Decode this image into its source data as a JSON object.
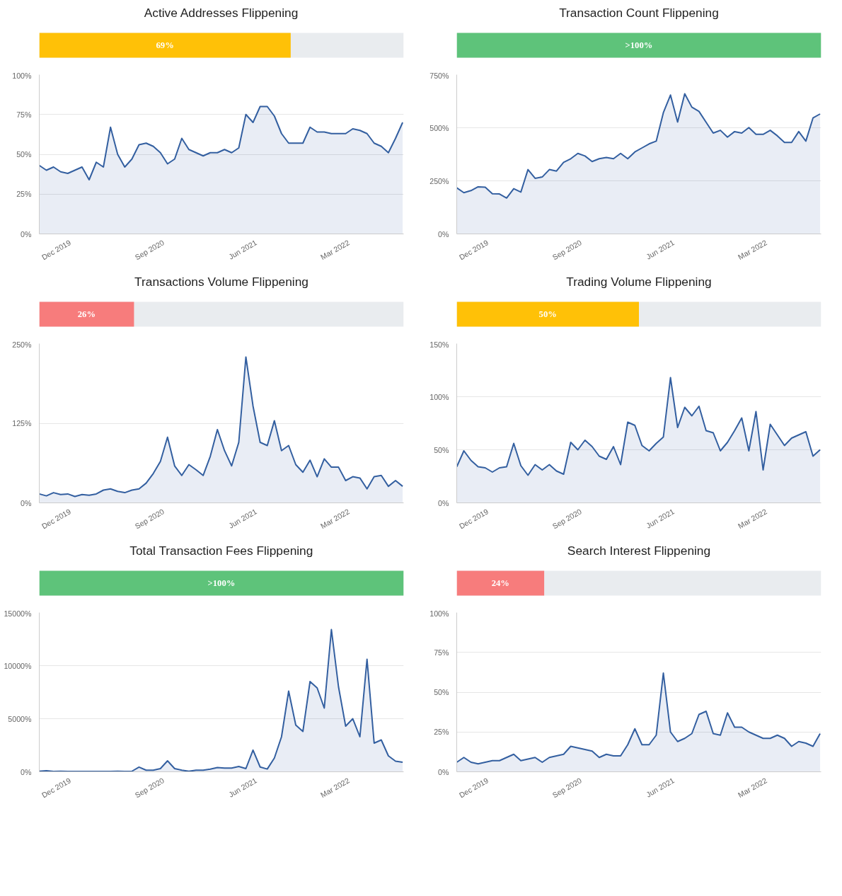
{
  "chart_data": [
    {
      "type": "other",
      "title": "Active Addresses Flippening",
      "values": [
        69
      ],
      "value_labels": [
        "69%"
      ],
      "colors": [
        "#ffc107"
      ]
    },
    {
      "type": "area",
      "xlim": [
        "2019-09-01",
        "2022-08-10"
      ],
      "ylim": [
        0,
        100
      ],
      "grid": "y",
      "xticks": [
        {
          "value": "2019-12-01",
          "label": "Dec 2019"
        },
        {
          "value": "2020-09-01",
          "label": "Sep 2020"
        },
        {
          "value": "2021-06-01",
          "label": "Jun 2021"
        },
        {
          "value": "2022-03-01",
          "label": "Mar 2022"
        }
      ],
      "yticks": [
        {
          "value": 0,
          "label": "0%"
        },
        {
          "value": 25,
          "label": "25%"
        },
        {
          "value": 50,
          "label": "50%"
        },
        {
          "value": 75,
          "label": "75%"
        },
        {
          "value": 100,
          "label": "100%"
        }
      ],
      "x": [
        "2019-09-01",
        "2019-09-22",
        "2019-10-13",
        "2019-11-03",
        "2019-11-24",
        "2019-12-15",
        "2020-01-05",
        "2020-01-26",
        "2020-02-16",
        "2020-03-08",
        "2020-03-29",
        "2020-04-19",
        "2020-05-10",
        "2020-05-31",
        "2020-06-21",
        "2020-07-12",
        "2020-08-02",
        "2020-08-23",
        "2020-09-13",
        "2020-10-04",
        "2020-10-25",
        "2020-11-15",
        "2020-12-06",
        "2020-12-27",
        "2021-01-17",
        "2021-02-07",
        "2021-02-28",
        "2021-03-21",
        "2021-04-11",
        "2021-05-02",
        "2021-05-23",
        "2021-06-13",
        "2021-07-04",
        "2021-07-25",
        "2021-08-15",
        "2021-09-05",
        "2021-09-26",
        "2021-10-17",
        "2021-11-07",
        "2021-11-28",
        "2021-12-19",
        "2022-01-09",
        "2022-01-30",
        "2022-02-20",
        "2022-03-13",
        "2022-04-03",
        "2022-04-24",
        "2022-05-15",
        "2022-06-05",
        "2022-06-26",
        "2022-07-17",
        "2022-08-07"
      ],
      "series": [
        {
          "color": "#335fa0",
          "values": [
            43,
            40,
            42,
            39,
            38,
            40,
            42,
            34,
            45,
            42,
            67,
            50,
            42,
            47,
            56,
            57,
            55,
            51,
            44,
            47,
            60,
            53,
            51,
            49,
            51,
            51,
            53,
            51,
            54,
            75,
            70,
            80,
            80,
            74,
            63,
            57,
            57,
            57,
            67,
            64,
            64,
            63,
            63,
            63,
            66,
            65,
            63,
            57,
            55,
            51,
            60,
            70
          ]
        }
      ]
    },
    {
      "type": "other",
      "title": "Transaction Count Flippening",
      "values": [
        100
      ],
      "value_labels": [
        ">100%"
      ],
      "colors": [
        "#5ec37a"
      ]
    },
    {
      "type": "area",
      "xlim": [
        "2019-09-01",
        "2022-08-10"
      ],
      "ylim": [
        0,
        750
      ],
      "grid": "y",
      "xticks": [
        {
          "value": "2019-12-01",
          "label": "Dec 2019"
        },
        {
          "value": "2020-09-01",
          "label": "Sep 2020"
        },
        {
          "value": "2021-06-01",
          "label": "Jun 2021"
        },
        {
          "value": "2022-03-01",
          "label": "Mar 2022"
        }
      ],
      "yticks": [
        {
          "value": 0,
          "label": "0%"
        },
        {
          "value": 250,
          "label": "250%"
        },
        {
          "value": 500,
          "label": "500%"
        },
        {
          "value": 750,
          "label": "750%"
        }
      ],
      "x": [
        "2019-09-01",
        "2019-09-22",
        "2019-10-13",
        "2019-11-03",
        "2019-11-24",
        "2019-12-15",
        "2020-01-05",
        "2020-01-26",
        "2020-02-16",
        "2020-03-08",
        "2020-03-29",
        "2020-04-19",
        "2020-05-10",
        "2020-05-31",
        "2020-06-21",
        "2020-07-12",
        "2020-08-02",
        "2020-08-23",
        "2020-09-13",
        "2020-10-04",
        "2020-10-25",
        "2020-11-15",
        "2020-12-06",
        "2020-12-27",
        "2021-01-17",
        "2021-02-07",
        "2021-02-28",
        "2021-03-21",
        "2021-04-11",
        "2021-05-02",
        "2021-05-23",
        "2021-06-13",
        "2021-07-04",
        "2021-07-25",
        "2021-08-15",
        "2021-09-05",
        "2021-09-26",
        "2021-10-17",
        "2021-11-07",
        "2021-11-28",
        "2021-12-19",
        "2022-01-09",
        "2022-01-30",
        "2022-02-20",
        "2022-03-13",
        "2022-04-03",
        "2022-04-24",
        "2022-05-15",
        "2022-06-05",
        "2022-06-26",
        "2022-07-17",
        "2022-08-07"
      ],
      "series": [
        {
          "color": "#335fa0",
          "values": [
            217,
            194,
            204,
            222,
            220,
            189,
            188,
            169,
            213,
            197,
            303,
            262,
            268,
            303,
            296,
            337,
            354,
            379,
            367,
            341,
            354,
            360,
            354,
            379,
            354,
            386,
            405,
            424,
            437,
            571,
            654,
            527,
            660,
            597,
            577,
            526,
            475,
            488,
            456,
            482,
            475,
            501,
            469,
            469,
            488,
            462,
            431,
            431,
            482,
            437,
            546,
            565
          ]
        }
      ]
    },
    {
      "type": "other",
      "title": "Transactions Volume Flippening",
      "values": [
        26
      ],
      "value_labels": [
        "26%"
      ],
      "colors": [
        "#f77c7c"
      ]
    },
    {
      "type": "area",
      "xlim": [
        "2019-09-01",
        "2022-08-10"
      ],
      "ylim": [
        0,
        250
      ],
      "grid": "y",
      "xticks": [
        {
          "value": "2019-12-01",
          "label": "Dec 2019"
        },
        {
          "value": "2020-09-01",
          "label": "Sep 2020"
        },
        {
          "value": "2021-06-01",
          "label": "Jun 2021"
        },
        {
          "value": "2022-03-01",
          "label": "Mar 2022"
        }
      ],
      "yticks": [
        {
          "value": 0,
          "label": "0%"
        },
        {
          "value": 125,
          "label": "125%"
        },
        {
          "value": 250,
          "label": "250%"
        }
      ],
      "x": [
        "2019-09-01",
        "2019-09-22",
        "2019-10-13",
        "2019-11-03",
        "2019-11-24",
        "2019-12-15",
        "2020-01-05",
        "2020-01-26",
        "2020-02-16",
        "2020-03-08",
        "2020-03-29",
        "2020-04-19",
        "2020-05-10",
        "2020-05-31",
        "2020-06-21",
        "2020-07-12",
        "2020-08-02",
        "2020-08-23",
        "2020-09-13",
        "2020-10-04",
        "2020-10-25",
        "2020-11-15",
        "2020-12-06",
        "2020-12-27",
        "2021-01-17",
        "2021-02-07",
        "2021-02-28",
        "2021-03-21",
        "2021-04-11",
        "2021-05-02",
        "2021-05-23",
        "2021-06-13",
        "2021-07-04",
        "2021-07-25",
        "2021-08-15",
        "2021-09-05",
        "2021-09-26",
        "2021-10-17",
        "2021-11-07",
        "2021-11-28",
        "2021-12-19",
        "2022-01-09",
        "2022-01-30",
        "2022-02-20",
        "2022-03-13",
        "2022-04-03",
        "2022-04-24",
        "2022-05-15",
        "2022-06-05",
        "2022-06-26",
        "2022-07-17",
        "2022-08-07"
      ],
      "series": [
        {
          "color": "#335fa0",
          "values": [
            14,
            11,
            16,
            13,
            14,
            10,
            13,
            12,
            14,
            20,
            22,
            18,
            16,
            20,
            22,
            31,
            46,
            65,
            103,
            58,
            43,
            60,
            52,
            43,
            73,
            115,
            82,
            58,
            95,
            229,
            152,
            95,
            90,
            129,
            82,
            90,
            60,
            48,
            67,
            41,
            69,
            56,
            56,
            35,
            41,
            39,
            22,
            41,
            43,
            26,
            35,
            26
          ]
        }
      ]
    },
    {
      "type": "other",
      "title": "Trading Volume Flippening",
      "values": [
        50
      ],
      "value_labels": [
        "50%"
      ],
      "colors": [
        "#ffc107"
      ]
    },
    {
      "type": "area",
      "xlim": [
        "2019-09-01",
        "2022-08-10"
      ],
      "ylim": [
        0,
        150
      ],
      "grid": "y",
      "xticks": [
        {
          "value": "2019-12-01",
          "label": "Dec 2019"
        },
        {
          "value": "2020-09-01",
          "label": "Sep 2020"
        },
        {
          "value": "2021-06-01",
          "label": "Jun 2021"
        },
        {
          "value": "2022-03-01",
          "label": "Mar 2022"
        }
      ],
      "yticks": [
        {
          "value": 0,
          "label": "0%"
        },
        {
          "value": 50,
          "label": "50%"
        },
        {
          "value": 100,
          "label": "100%"
        },
        {
          "value": 150,
          "label": "150%"
        }
      ],
      "x": [
        "2019-09-01",
        "2019-09-22",
        "2019-10-13",
        "2019-11-03",
        "2019-11-24",
        "2019-12-15",
        "2020-01-05",
        "2020-01-26",
        "2020-02-16",
        "2020-03-08",
        "2020-03-29",
        "2020-04-19",
        "2020-05-10",
        "2020-05-31",
        "2020-06-21",
        "2020-07-12",
        "2020-08-02",
        "2020-08-23",
        "2020-09-13",
        "2020-10-04",
        "2020-10-25",
        "2020-11-15",
        "2020-12-06",
        "2020-12-27",
        "2021-01-17",
        "2021-02-07",
        "2021-02-28",
        "2021-03-21",
        "2021-04-11",
        "2021-05-02",
        "2021-05-23",
        "2021-06-13",
        "2021-07-04",
        "2021-07-25",
        "2021-08-15",
        "2021-09-05",
        "2021-09-26",
        "2021-10-17",
        "2021-11-07",
        "2021-11-28",
        "2021-12-19",
        "2022-01-09",
        "2022-01-30",
        "2022-02-20",
        "2022-03-13",
        "2022-04-03",
        "2022-04-24",
        "2022-05-15",
        "2022-06-05",
        "2022-06-26",
        "2022-07-17",
        "2022-08-07"
      ],
      "series": [
        {
          "color": "#335fa0",
          "values": [
            34,
            49,
            40,
            34,
            33,
            29,
            33,
            34,
            56,
            35,
            26,
            36,
            31,
            36,
            30,
            27,
            57,
            50,
            59,
            53,
            44,
            41,
            53,
            36,
            76,
            73,
            54,
            49,
            56,
            62,
            118,
            71,
            90,
            82,
            91,
            68,
            66,
            49,
            57,
            68,
            80,
            49,
            86,
            31,
            74,
            64,
            54,
            61,
            64,
            67,
            44,
            50
          ]
        }
      ]
    },
    {
      "type": "other",
      "title": "Total Transaction Fees Flippening",
      "values": [
        100
      ],
      "value_labels": [
        ">100%"
      ],
      "colors": [
        "#5ec37a"
      ]
    },
    {
      "type": "area",
      "xlim": [
        "2019-09-01",
        "2022-08-10"
      ],
      "ylim": [
        0,
        15000
      ],
      "grid": "y",
      "xticks": [
        {
          "value": "2019-12-01",
          "label": "Dec 2019"
        },
        {
          "value": "2020-09-01",
          "label": "Sep 2020"
        },
        {
          "value": "2021-06-01",
          "label": "Jun 2021"
        },
        {
          "value": "2022-03-01",
          "label": "Mar 2022"
        }
      ],
      "yticks": [
        {
          "value": 0,
          "label": "0%"
        },
        {
          "value": 5000,
          "label": "5000%"
        },
        {
          "value": 10000,
          "label": "10000%"
        },
        {
          "value": 15000,
          "label": "15000%"
        }
      ],
      "x": [
        "2019-09-01",
        "2019-09-22",
        "2019-10-13",
        "2019-11-03",
        "2019-11-24",
        "2019-12-15",
        "2020-01-05",
        "2020-01-26",
        "2020-02-16",
        "2020-03-08",
        "2020-03-29",
        "2020-04-19",
        "2020-05-10",
        "2020-05-31",
        "2020-06-21",
        "2020-07-12",
        "2020-08-02",
        "2020-08-23",
        "2020-09-13",
        "2020-10-04",
        "2020-10-25",
        "2020-11-15",
        "2020-12-06",
        "2020-12-27",
        "2021-01-17",
        "2021-02-07",
        "2021-02-28",
        "2021-03-21",
        "2021-04-11",
        "2021-05-02",
        "2021-05-23",
        "2021-06-13",
        "2021-07-04",
        "2021-07-25",
        "2021-08-15",
        "2021-09-05",
        "2021-09-26",
        "2021-10-17",
        "2021-11-07",
        "2021-11-28",
        "2021-12-19",
        "2022-01-09",
        "2022-01-30",
        "2022-02-20",
        "2022-03-13",
        "2022-04-03",
        "2022-04-24",
        "2022-05-15",
        "2022-06-05",
        "2022-06-26",
        "2022-07-17",
        "2022-08-07"
      ],
      "series": [
        {
          "color": "#335fa0",
          "values": [
            50,
            100,
            30,
            50,
            30,
            40,
            30,
            40,
            30,
            40,
            30,
            50,
            30,
            50,
            440,
            150,
            150,
            300,
            1030,
            300,
            150,
            50,
            150,
            150,
            250,
            400,
            350,
            350,
            500,
            300,
            2040,
            450,
            260,
            1300,
            3300,
            7600,
            4400,
            3800,
            8500,
            7900,
            6000,
            13400,
            8000,
            4300,
            5000,
            3300,
            10600,
            2700,
            3000,
            1500,
            1000,
            900
          ]
        }
      ]
    },
    {
      "type": "other",
      "title": "Search Interest Flippening",
      "values": [
        24
      ],
      "value_labels": [
        "24%"
      ],
      "colors": [
        "#f77c7c"
      ]
    },
    {
      "type": "area",
      "xlim": [
        "2019-09-01",
        "2022-08-10"
      ],
      "ylim": [
        0,
        100
      ],
      "grid": "y",
      "xticks": [
        {
          "value": "2019-12-01",
          "label": "Dec 2019"
        },
        {
          "value": "2020-09-01",
          "label": "Sep 2020"
        },
        {
          "value": "2021-06-01",
          "label": "Jun 2021"
        },
        {
          "value": "2022-03-01",
          "label": "Mar 2022"
        }
      ],
      "yticks": [
        {
          "value": 0,
          "label": "0%"
        },
        {
          "value": 25,
          "label": "25%"
        },
        {
          "value": 50,
          "label": "50%"
        },
        {
          "value": 75,
          "label": "75%"
        },
        {
          "value": 100,
          "label": "100%"
        }
      ],
      "x": [
        "2019-09-01",
        "2019-09-22",
        "2019-10-13",
        "2019-11-03",
        "2019-11-24",
        "2019-12-15",
        "2020-01-05",
        "2020-01-26",
        "2020-02-16",
        "2020-03-08",
        "2020-03-29",
        "2020-04-19",
        "2020-05-10",
        "2020-05-31",
        "2020-06-21",
        "2020-07-12",
        "2020-08-02",
        "2020-08-23",
        "2020-09-13",
        "2020-10-04",
        "2020-10-25",
        "2020-11-15",
        "2020-12-06",
        "2020-12-27",
        "2021-01-17",
        "2021-02-07",
        "2021-02-28",
        "2021-03-21",
        "2021-04-11",
        "2021-05-02",
        "2021-05-23",
        "2021-06-13",
        "2021-07-04",
        "2021-07-25",
        "2021-08-15",
        "2021-09-05",
        "2021-09-26",
        "2021-10-17",
        "2021-11-07",
        "2021-11-28",
        "2021-12-19",
        "2022-01-09",
        "2022-01-30",
        "2022-02-20",
        "2022-03-13",
        "2022-04-03",
        "2022-04-24",
        "2022-05-15",
        "2022-06-05",
        "2022-06-26",
        "2022-07-17",
        "2022-08-07"
      ],
      "series": [
        {
          "color": "#335fa0",
          "values": [
            6,
            9,
            6,
            5,
            6,
            7,
            7,
            9,
            11,
            7,
            8,
            9,
            6,
            9,
            10,
            11,
            16,
            15,
            14,
            13,
            9,
            11,
            10,
            10,
            17,
            27,
            17,
            17,
            23,
            62,
            25,
            19,
            21,
            24,
            36,
            38,
            24,
            23,
            37,
            28,
            28,
            25,
            23,
            21,
            21,
            23,
            21,
            16,
            19,
            18,
            16,
            24
          ]
        }
      ]
    }
  ]
}
